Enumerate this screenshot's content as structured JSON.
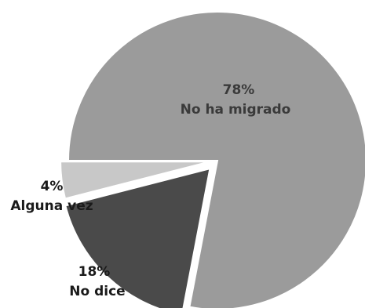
{
  "chart_data": {
    "type": "pie",
    "slices": [
      {
        "label": "No ha migrado",
        "percent_label": "78%",
        "value": 78,
        "color": "#9b9b9b"
      },
      {
        "label": "No dice",
        "percent_label": "18%",
        "value": 18,
        "color": "#4a4a4a"
      },
      {
        "label": "Alguna vez",
        "percent_label": "4%",
        "value": 4,
        "color": "#c8c8c8"
      }
    ],
    "title": "",
    "legend": "none",
    "label_placement": "inside-or-beside-slices"
  }
}
